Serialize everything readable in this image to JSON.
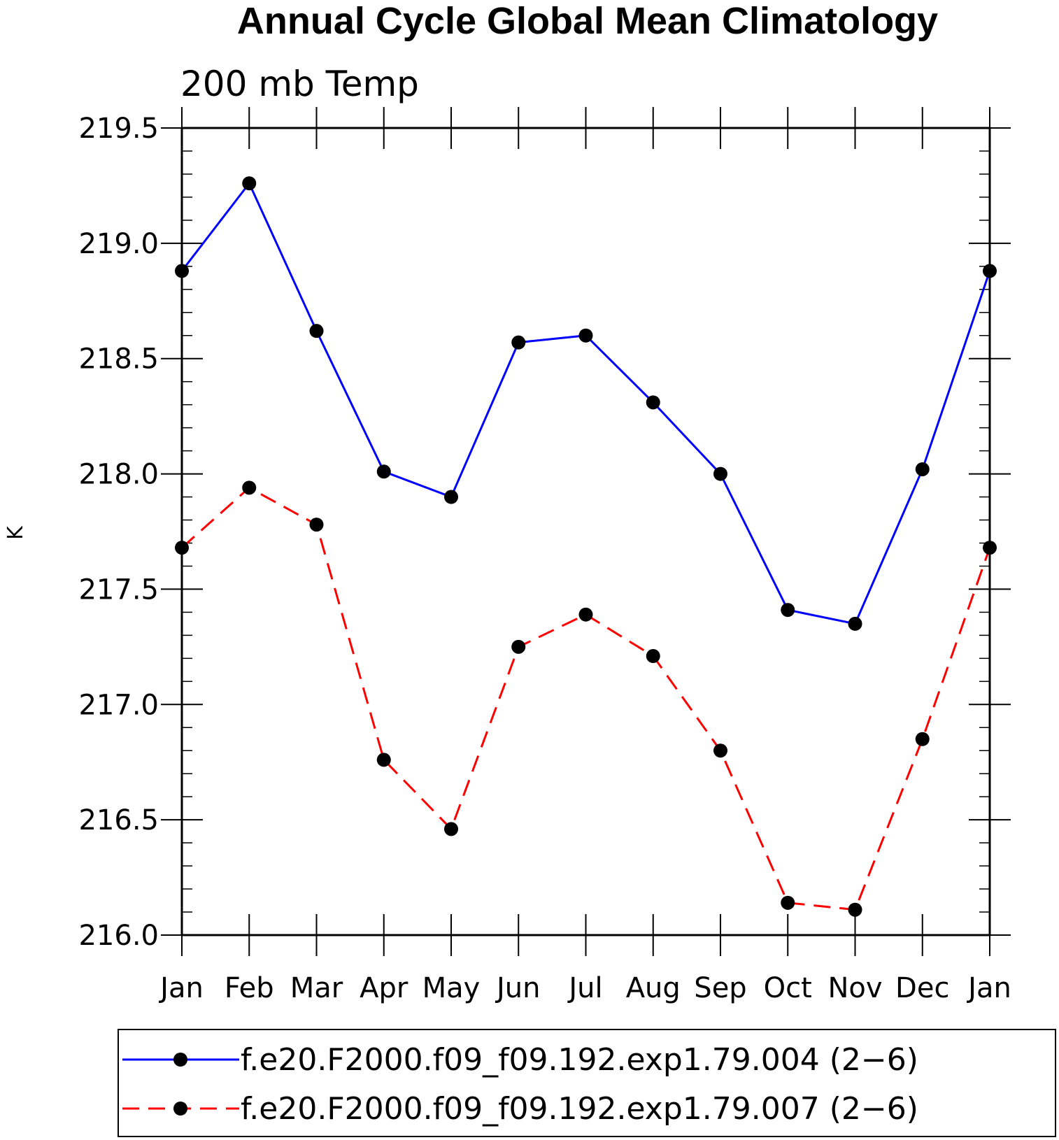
{
  "chart_data": {
    "type": "line",
    "title": "Annual Cycle Global Mean Climatology",
    "subtitle": "200 mb Temp",
    "ylabel": "K",
    "xlabel": "",
    "ylim": [
      216.0,
      219.5
    ],
    "yticks": [
      "216.0",
      "216.5",
      "217.0",
      "217.5",
      "218.0",
      "218.5",
      "219.0",
      "219.5"
    ],
    "categories": [
      "Jan",
      "Feb",
      "Mar",
      "Apr",
      "May",
      "Jun",
      "Jul",
      "Aug",
      "Sep",
      "Oct",
      "Nov",
      "Dec",
      "Jan"
    ],
    "legend_position": "bottom",
    "series": [
      {
        "name": "f.e20.F2000.f09_f09.192.exp1.79.004 (2−6)",
        "color": "#0000ff",
        "dash": "solid",
        "values": [
          218.88,
          219.26,
          218.62,
          218.01,
          217.9,
          218.57,
          218.6,
          218.31,
          218.0,
          217.41,
          217.35,
          218.02,
          218.88
        ]
      },
      {
        "name": "f.e20.F2000.f09_f09.192.exp1.79.007 (2−6)",
        "color": "#ff0000",
        "dash": "dashed",
        "values": [
          217.68,
          217.94,
          217.78,
          216.76,
          216.46,
          217.25,
          217.39,
          217.21,
          216.8,
          216.14,
          216.11,
          216.85,
          217.68
        ]
      }
    ]
  }
}
